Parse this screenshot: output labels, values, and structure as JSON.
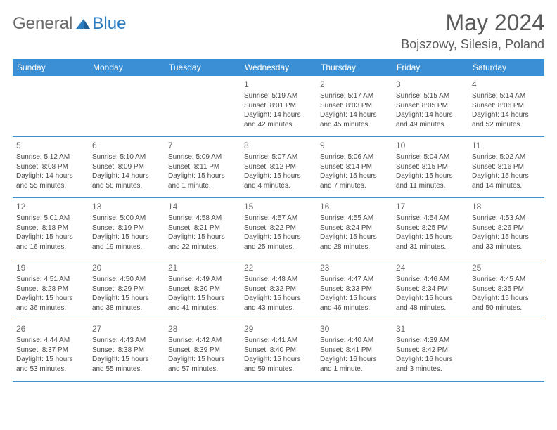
{
  "logo": {
    "general": "General",
    "blue": "Blue"
  },
  "title": "May 2024",
  "location": "Bojszowy, Silesia, Poland",
  "colors": {
    "header_bg": "#3b8fd4",
    "header_text": "#ffffff",
    "text": "#4a4a4a",
    "title_text": "#5a5a5a",
    "logo_gray": "#6a6a6a",
    "logo_blue": "#2b7bbf",
    "border": "#3b8fd4",
    "background": "#ffffff"
  },
  "dow": [
    "Sunday",
    "Monday",
    "Tuesday",
    "Wednesday",
    "Thursday",
    "Friday",
    "Saturday"
  ],
  "weeks": [
    [
      {
        "n": "",
        "sr": "",
        "ss": "",
        "dl1": "",
        "dl2": ""
      },
      {
        "n": "",
        "sr": "",
        "ss": "",
        "dl1": "",
        "dl2": ""
      },
      {
        "n": "",
        "sr": "",
        "ss": "",
        "dl1": "",
        "dl2": ""
      },
      {
        "n": "1",
        "sr": "Sunrise: 5:19 AM",
        "ss": "Sunset: 8:01 PM",
        "dl1": "Daylight: 14 hours",
        "dl2": "and 42 minutes."
      },
      {
        "n": "2",
        "sr": "Sunrise: 5:17 AM",
        "ss": "Sunset: 8:03 PM",
        "dl1": "Daylight: 14 hours",
        "dl2": "and 45 minutes."
      },
      {
        "n": "3",
        "sr": "Sunrise: 5:15 AM",
        "ss": "Sunset: 8:05 PM",
        "dl1": "Daylight: 14 hours",
        "dl2": "and 49 minutes."
      },
      {
        "n": "4",
        "sr": "Sunrise: 5:14 AM",
        "ss": "Sunset: 8:06 PM",
        "dl1": "Daylight: 14 hours",
        "dl2": "and 52 minutes."
      }
    ],
    [
      {
        "n": "5",
        "sr": "Sunrise: 5:12 AM",
        "ss": "Sunset: 8:08 PM",
        "dl1": "Daylight: 14 hours",
        "dl2": "and 55 minutes."
      },
      {
        "n": "6",
        "sr": "Sunrise: 5:10 AM",
        "ss": "Sunset: 8:09 PM",
        "dl1": "Daylight: 14 hours",
        "dl2": "and 58 minutes."
      },
      {
        "n": "7",
        "sr": "Sunrise: 5:09 AM",
        "ss": "Sunset: 8:11 PM",
        "dl1": "Daylight: 15 hours",
        "dl2": "and 1 minute."
      },
      {
        "n": "8",
        "sr": "Sunrise: 5:07 AM",
        "ss": "Sunset: 8:12 PM",
        "dl1": "Daylight: 15 hours",
        "dl2": "and 4 minutes."
      },
      {
        "n": "9",
        "sr": "Sunrise: 5:06 AM",
        "ss": "Sunset: 8:14 PM",
        "dl1": "Daylight: 15 hours",
        "dl2": "and 7 minutes."
      },
      {
        "n": "10",
        "sr": "Sunrise: 5:04 AM",
        "ss": "Sunset: 8:15 PM",
        "dl1": "Daylight: 15 hours",
        "dl2": "and 11 minutes."
      },
      {
        "n": "11",
        "sr": "Sunrise: 5:02 AM",
        "ss": "Sunset: 8:16 PM",
        "dl1": "Daylight: 15 hours",
        "dl2": "and 14 minutes."
      }
    ],
    [
      {
        "n": "12",
        "sr": "Sunrise: 5:01 AM",
        "ss": "Sunset: 8:18 PM",
        "dl1": "Daylight: 15 hours",
        "dl2": "and 16 minutes."
      },
      {
        "n": "13",
        "sr": "Sunrise: 5:00 AM",
        "ss": "Sunset: 8:19 PM",
        "dl1": "Daylight: 15 hours",
        "dl2": "and 19 minutes."
      },
      {
        "n": "14",
        "sr": "Sunrise: 4:58 AM",
        "ss": "Sunset: 8:21 PM",
        "dl1": "Daylight: 15 hours",
        "dl2": "and 22 minutes."
      },
      {
        "n": "15",
        "sr": "Sunrise: 4:57 AM",
        "ss": "Sunset: 8:22 PM",
        "dl1": "Daylight: 15 hours",
        "dl2": "and 25 minutes."
      },
      {
        "n": "16",
        "sr": "Sunrise: 4:55 AM",
        "ss": "Sunset: 8:24 PM",
        "dl1": "Daylight: 15 hours",
        "dl2": "and 28 minutes."
      },
      {
        "n": "17",
        "sr": "Sunrise: 4:54 AM",
        "ss": "Sunset: 8:25 PM",
        "dl1": "Daylight: 15 hours",
        "dl2": "and 31 minutes."
      },
      {
        "n": "18",
        "sr": "Sunrise: 4:53 AM",
        "ss": "Sunset: 8:26 PM",
        "dl1": "Daylight: 15 hours",
        "dl2": "and 33 minutes."
      }
    ],
    [
      {
        "n": "19",
        "sr": "Sunrise: 4:51 AM",
        "ss": "Sunset: 8:28 PM",
        "dl1": "Daylight: 15 hours",
        "dl2": "and 36 minutes."
      },
      {
        "n": "20",
        "sr": "Sunrise: 4:50 AM",
        "ss": "Sunset: 8:29 PM",
        "dl1": "Daylight: 15 hours",
        "dl2": "and 38 minutes."
      },
      {
        "n": "21",
        "sr": "Sunrise: 4:49 AM",
        "ss": "Sunset: 8:30 PM",
        "dl1": "Daylight: 15 hours",
        "dl2": "and 41 minutes."
      },
      {
        "n": "22",
        "sr": "Sunrise: 4:48 AM",
        "ss": "Sunset: 8:32 PM",
        "dl1": "Daylight: 15 hours",
        "dl2": "and 43 minutes."
      },
      {
        "n": "23",
        "sr": "Sunrise: 4:47 AM",
        "ss": "Sunset: 8:33 PM",
        "dl1": "Daylight: 15 hours",
        "dl2": "and 46 minutes."
      },
      {
        "n": "24",
        "sr": "Sunrise: 4:46 AM",
        "ss": "Sunset: 8:34 PM",
        "dl1": "Daylight: 15 hours",
        "dl2": "and 48 minutes."
      },
      {
        "n": "25",
        "sr": "Sunrise: 4:45 AM",
        "ss": "Sunset: 8:35 PM",
        "dl1": "Daylight: 15 hours",
        "dl2": "and 50 minutes."
      }
    ],
    [
      {
        "n": "26",
        "sr": "Sunrise: 4:44 AM",
        "ss": "Sunset: 8:37 PM",
        "dl1": "Daylight: 15 hours",
        "dl2": "and 53 minutes."
      },
      {
        "n": "27",
        "sr": "Sunrise: 4:43 AM",
        "ss": "Sunset: 8:38 PM",
        "dl1": "Daylight: 15 hours",
        "dl2": "and 55 minutes."
      },
      {
        "n": "28",
        "sr": "Sunrise: 4:42 AM",
        "ss": "Sunset: 8:39 PM",
        "dl1": "Daylight: 15 hours",
        "dl2": "and 57 minutes."
      },
      {
        "n": "29",
        "sr": "Sunrise: 4:41 AM",
        "ss": "Sunset: 8:40 PM",
        "dl1": "Daylight: 15 hours",
        "dl2": "and 59 minutes."
      },
      {
        "n": "30",
        "sr": "Sunrise: 4:40 AM",
        "ss": "Sunset: 8:41 PM",
        "dl1": "Daylight: 16 hours",
        "dl2": "and 1 minute."
      },
      {
        "n": "31",
        "sr": "Sunrise: 4:39 AM",
        "ss": "Sunset: 8:42 PM",
        "dl1": "Daylight: 16 hours",
        "dl2": "and 3 minutes."
      },
      {
        "n": "",
        "sr": "",
        "ss": "",
        "dl1": "",
        "dl2": ""
      }
    ]
  ]
}
